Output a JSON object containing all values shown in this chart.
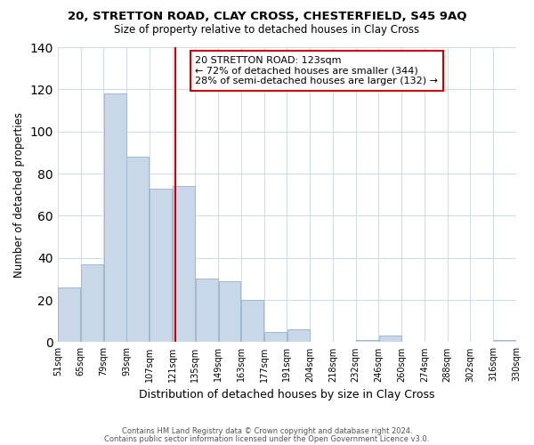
{
  "title": "20, STRETTON ROAD, CLAY CROSS, CHESTERFIELD, S45 9AQ",
  "subtitle": "Size of property relative to detached houses in Clay Cross",
  "bar_values": [
    26,
    37,
    118,
    88,
    73,
    74,
    30,
    29,
    20,
    5,
    6,
    0,
    0,
    1,
    3,
    0,
    0,
    0,
    0,
    1
  ],
  "bin_edges": [
    51,
    65,
    79,
    93,
    107,
    121,
    135,
    149,
    163,
    177,
    191,
    204,
    218,
    232,
    246,
    260,
    274,
    288,
    302,
    316,
    330
  ],
  "tick_labels": [
    "51sqm",
    "65sqm",
    "79sqm",
    "93sqm",
    "107sqm",
    "121sqm",
    "135sqm",
    "149sqm",
    "163sqm",
    "177sqm",
    "191sqm",
    "204sqm",
    "218sqm",
    "232sqm",
    "246sqm",
    "260sqm",
    "274sqm",
    "288sqm",
    "302sqm",
    "316sqm",
    "330sqm"
  ],
  "bar_color": "#c8d8e8",
  "bar_edge_color": "#a0b8d0",
  "vline_x": 123,
  "vline_color": "#cc0000",
  "ylabel": "Number of detached properties",
  "xlabel": "Distribution of detached houses by size in Clay Cross",
  "ylim": [
    0,
    140
  ],
  "yticks": [
    0,
    20,
    40,
    60,
    80,
    100,
    120,
    140
  ],
  "annotation_title": "20 STRETTON ROAD: 123sqm",
  "annotation_line1": "← 72% of detached houses are smaller (344)",
  "annotation_line2": "28% of semi-detached houses are larger (132) →",
  "annotation_box_color": "#ffffff",
  "annotation_box_edge": "#cc0000",
  "footer1": "Contains HM Land Registry data © Crown copyright and database right 2024.",
  "footer2": "Contains public sector information licensed under the Open Government Licence v3.0.",
  "background_color": "#ffffff",
  "grid_color": "#d0dce8"
}
